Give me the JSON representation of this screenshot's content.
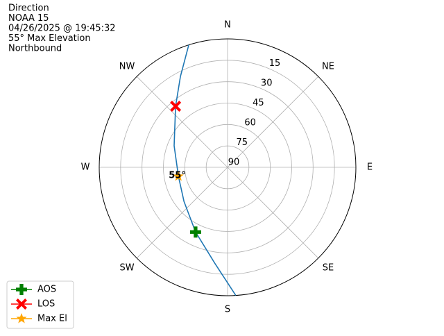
{
  "chart_data": {
    "type": "polar",
    "title_lines": [
      "Direction",
      "NOAA 15",
      "04/26/2025 @ 19:45:32",
      "55° Max Elevation",
      "Northbound"
    ],
    "rlim": [
      90,
      0
    ],
    "rticks": [
      15,
      30,
      45,
      60,
      75,
      90
    ],
    "theta_ticks": [
      {
        "value": 0,
        "label": "N"
      },
      {
        "value": 45,
        "label": "NE"
      },
      {
        "value": 90,
        "label": "E"
      },
      {
        "value": 135,
        "label": "SE"
      },
      {
        "value": 180,
        "label": "S"
      },
      {
        "value": 225,
        "label": "SW"
      },
      {
        "value": 270,
        "label": "W"
      },
      {
        "value": 315,
        "label": "NW"
      }
    ],
    "grid": true,
    "track": {
      "color": "#1f77b4",
      "azimuth": [
        176.3,
        187.4,
        206.3,
        232,
        259.6,
        292,
        319.6,
        332.6,
        342.4
      ],
      "elevation": [
        0,
        21.9,
        39.4,
        51.2,
        55,
        49.6,
        33.8,
        18.2,
        0
      ]
    },
    "series": [
      {
        "name": "AOS",
        "color": "#008000",
        "marker": "plus",
        "azimuth": [
          206.3
        ],
        "elevation": [
          39.4
        ]
      },
      {
        "name": "LOS",
        "color": "#ff0000",
        "marker": "x",
        "azimuth": [
          319.6
        ],
        "elevation": [
          33.8
        ]
      },
      {
        "name": "Max El",
        "color": "#ffa500",
        "marker": "star",
        "azimuth": [
          259.6
        ],
        "elevation": [
          55
        ]
      }
    ],
    "annotation": "55°",
    "legend": "lower left"
  }
}
